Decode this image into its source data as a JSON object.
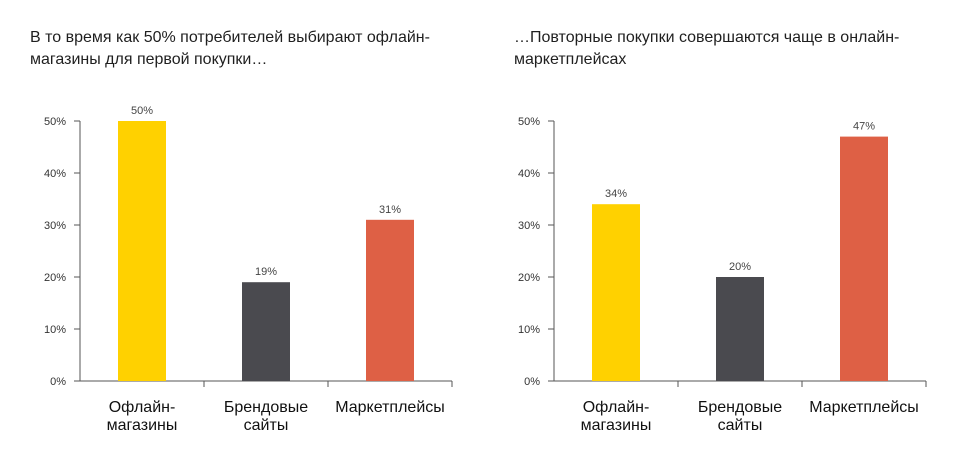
{
  "chart_data": [
    {
      "type": "bar",
      "title": "В то время как 50% потребителей выбирают офлайн-магазины для первой покупки…",
      "categories": [
        "Офлайн-магазины",
        "Брендовые сайты",
        "Маркетплейсы"
      ],
      "category_lines": [
        [
          "Офлайн-",
          "магазины"
        ],
        [
          "Брендовые",
          "сайты"
        ],
        [
          "Маркетплейсы"
        ]
      ],
      "values": [
        50,
        19,
        31
      ],
      "value_labels": [
        "50%",
        "19%",
        "31%"
      ],
      "colors": [
        "#FFD100",
        "#4A4A4F",
        "#DE6045"
      ],
      "ylim": [
        0,
        50
      ],
      "yticks": [
        0,
        10,
        20,
        30,
        40,
        50
      ],
      "ytick_labels": [
        "0%",
        "10%",
        "20%",
        "30%",
        "40%",
        "50%"
      ],
      "grid": false
    },
    {
      "type": "bar",
      "title": "…Повторные покупки совершаются чаще в онлайн-маркетплейсах",
      "categories": [
        "Офлайн-магазины",
        "Брендовые сайты",
        "Маркетплейсы"
      ],
      "category_lines": [
        [
          "Офлайн-",
          "магазины"
        ],
        [
          "Брендовые",
          "сайты"
        ],
        [
          "Маркетплейсы"
        ]
      ],
      "values": [
        34,
        20,
        47
      ],
      "value_labels": [
        "34%",
        "20%",
        "47%"
      ],
      "colors": [
        "#FFD100",
        "#4A4A4F",
        "#DE6045"
      ],
      "ylim": [
        0,
        50
      ],
      "yticks": [
        0,
        10,
        20,
        30,
        40,
        50
      ],
      "ytick_labels": [
        "0%",
        "10%",
        "20%",
        "30%",
        "40%",
        "50%"
      ],
      "grid": false
    }
  ]
}
